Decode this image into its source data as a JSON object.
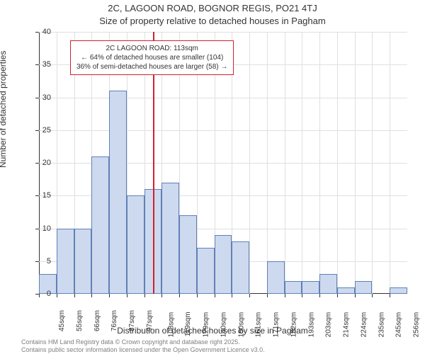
{
  "chart": {
    "type": "histogram",
    "title_line1": "2C, LAGOON ROAD, BOGNOR REGIS, PO21 4TJ",
    "title_line2": "Size of property relative to detached houses in Pagham",
    "xlabel": "Distribution of detached houses by size in Pagham",
    "ylabel": "Number of detached properties",
    "background_color": "#ffffff",
    "grid_color": "#e0e0e0",
    "axis_color": "#333333",
    "ylim": [
      0,
      40
    ],
    "ytick_step": 5,
    "yticks": [
      0,
      5,
      10,
      15,
      20,
      25,
      30,
      35,
      40
    ],
    "xtick_labels": [
      "45sqm",
      "55sqm",
      "66sqm",
      "76sqm",
      "87sqm",
      "97sqm",
      "108sqm",
      "119sqm",
      "129sqm",
      "140sqm",
      "150sqm",
      "161sqm",
      "171sqm",
      "182sqm",
      "193sqm",
      "203sqm",
      "214sqm",
      "224sqm",
      "235sqm",
      "245sqm",
      "256sqm"
    ],
    "bar_values": [
      3,
      10,
      10,
      21,
      31,
      15,
      16,
      17,
      12,
      7,
      9,
      8,
      0,
      5,
      2,
      2,
      3,
      1,
      2,
      0,
      1
    ],
    "bar_fill_color": "#cdd9ee",
    "bar_border_color": "#6080b8",
    "bar_width_ratio": 1.0,
    "reference_line": {
      "position_index": 6.5,
      "color": "#d02030",
      "width": 2
    },
    "annotation": {
      "line1": "2C LAGOON ROAD: 113sqm",
      "line2": "← 64% of detached houses are smaller (104)",
      "line3": "36% of semi-detached houses are larger (58) →",
      "border_color": "#d02030",
      "background_color": "#ffffff",
      "fontsize": 10
    },
    "title_fontsize": 13,
    "label_fontsize": 12,
    "tick_fontsize": 11
  },
  "footer": {
    "line1": "Contains HM Land Registry data © Crown copyright and database right 2025.",
    "line2": "Contains public sector information licensed under the Open Government Licence v3.0.",
    "color": "#808080",
    "fontsize": 9
  }
}
